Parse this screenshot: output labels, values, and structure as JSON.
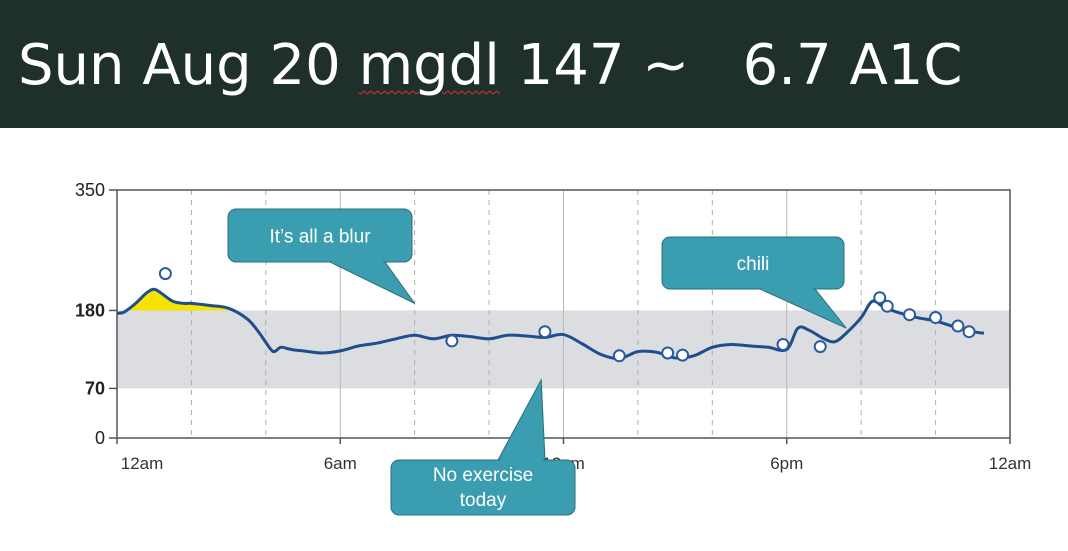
{
  "header": {
    "title_day": "Sun Aug 20",
    "title_unit": "mgdl",
    "title_value": "147 ~",
    "title_a1c": "6.7 A1C"
  },
  "colors": {
    "banner": "#1f2f2c",
    "line": "#1f4e8c",
    "target_band": "#dcdde0",
    "high_fill": "#f5e400",
    "callout": "#3b9eb0"
  },
  "chart_data": {
    "type": "line",
    "title": "",
    "xlabel": "",
    "ylabel": "",
    "xlim": [
      0,
      24
    ],
    "ylim": [
      0,
      350
    ],
    "x_ticks": [
      {
        "label": "12am",
        "hour": 0
      },
      {
        "label": "6am",
        "hour": 6
      },
      {
        "label": "12pm",
        "hour": 12
      },
      {
        "label": "6pm",
        "hour": 18
      },
      {
        "label": "12am",
        "hour": 24
      }
    ],
    "y_ticks": [
      {
        "label": "350",
        "value": 350,
        "bold": false
      },
      {
        "label": "180",
        "value": 180,
        "bold": true
      },
      {
        "label": "70",
        "value": 70,
        "bold": true
      },
      {
        "label": "0",
        "value": 0,
        "bold": false
      }
    ],
    "target_range": [
      70,
      180
    ],
    "grid_hours": [
      2,
      4,
      6,
      8,
      10,
      12,
      14,
      16,
      18,
      20,
      22
    ],
    "series": [
      {
        "x": [
          0,
          0.2,
          0.5,
          0.8,
          1.0,
          1.2,
          1.5,
          1.8,
          2.0,
          2.5,
          3.0,
          3.5,
          3.8,
          4.0,
          4.2,
          4.4,
          4.6,
          4.8,
          5.0,
          5.5,
          6.0,
          6.5,
          7.0,
          7.5,
          8.0,
          8.5,
          9.0,
          9.5,
          10.0,
          10.5,
          11.0,
          11.5,
          12.0,
          12.5,
          13.0,
          13.5,
          14.0,
          14.5,
          15.0,
          15.5,
          16.0,
          16.5,
          17.0,
          17.5,
          18.0,
          18.3,
          18.6,
          19.0,
          19.3,
          19.6,
          20.0,
          20.3,
          20.6,
          21.0,
          21.5,
          22.0,
          22.5,
          23.0,
          23.3
        ],
        "y": [
          176,
          178,
          190,
          205,
          210,
          204,
          193,
          190,
          190,
          187,
          183,
          168,
          150,
          135,
          122,
          128,
          126,
          124,
          123,
          120,
          123,
          130,
          134,
          140,
          145,
          140,
          145,
          143,
          140,
          145,
          144,
          142,
          146,
          133,
          118,
          112,
          122,
          121,
          113,
          116,
          128,
          132,
          130,
          128,
          125,
          155,
          152,
          140,
          136,
          148,
          170,
          193,
          185,
          177,
          170,
          165,
          157,
          150,
          148
        ]
      }
    ],
    "fingersticks": [
      {
        "x": 1.3,
        "y": 232
      },
      {
        "x": 9.0,
        "y": 137
      },
      {
        "x": 11.5,
        "y": 150
      },
      {
        "x": 13.5,
        "y": 116
      },
      {
        "x": 14.8,
        "y": 120
      },
      {
        "x": 15.2,
        "y": 117
      },
      {
        "x": 17.9,
        "y": 132
      },
      {
        "x": 18.9,
        "y": 129
      },
      {
        "x": 20.5,
        "y": 198
      },
      {
        "x": 20.7,
        "y": 186
      },
      {
        "x": 21.3,
        "y": 174
      },
      {
        "x": 22.0,
        "y": 170
      },
      {
        "x": 22.6,
        "y": 158
      },
      {
        "x": 22.9,
        "y": 150
      }
    ],
    "annotations": [
      {
        "text": "It’s all a blur",
        "tail_to_hour": 8.0,
        "tail_to_value": 190
      },
      {
        "text": "chili",
        "tail_to_hour": 19.6,
        "tail_to_value": 155
      },
      {
        "text": "No exercise today",
        "tail_to_hour": 11.4,
        "tail_to_value": 82
      }
    ]
  }
}
